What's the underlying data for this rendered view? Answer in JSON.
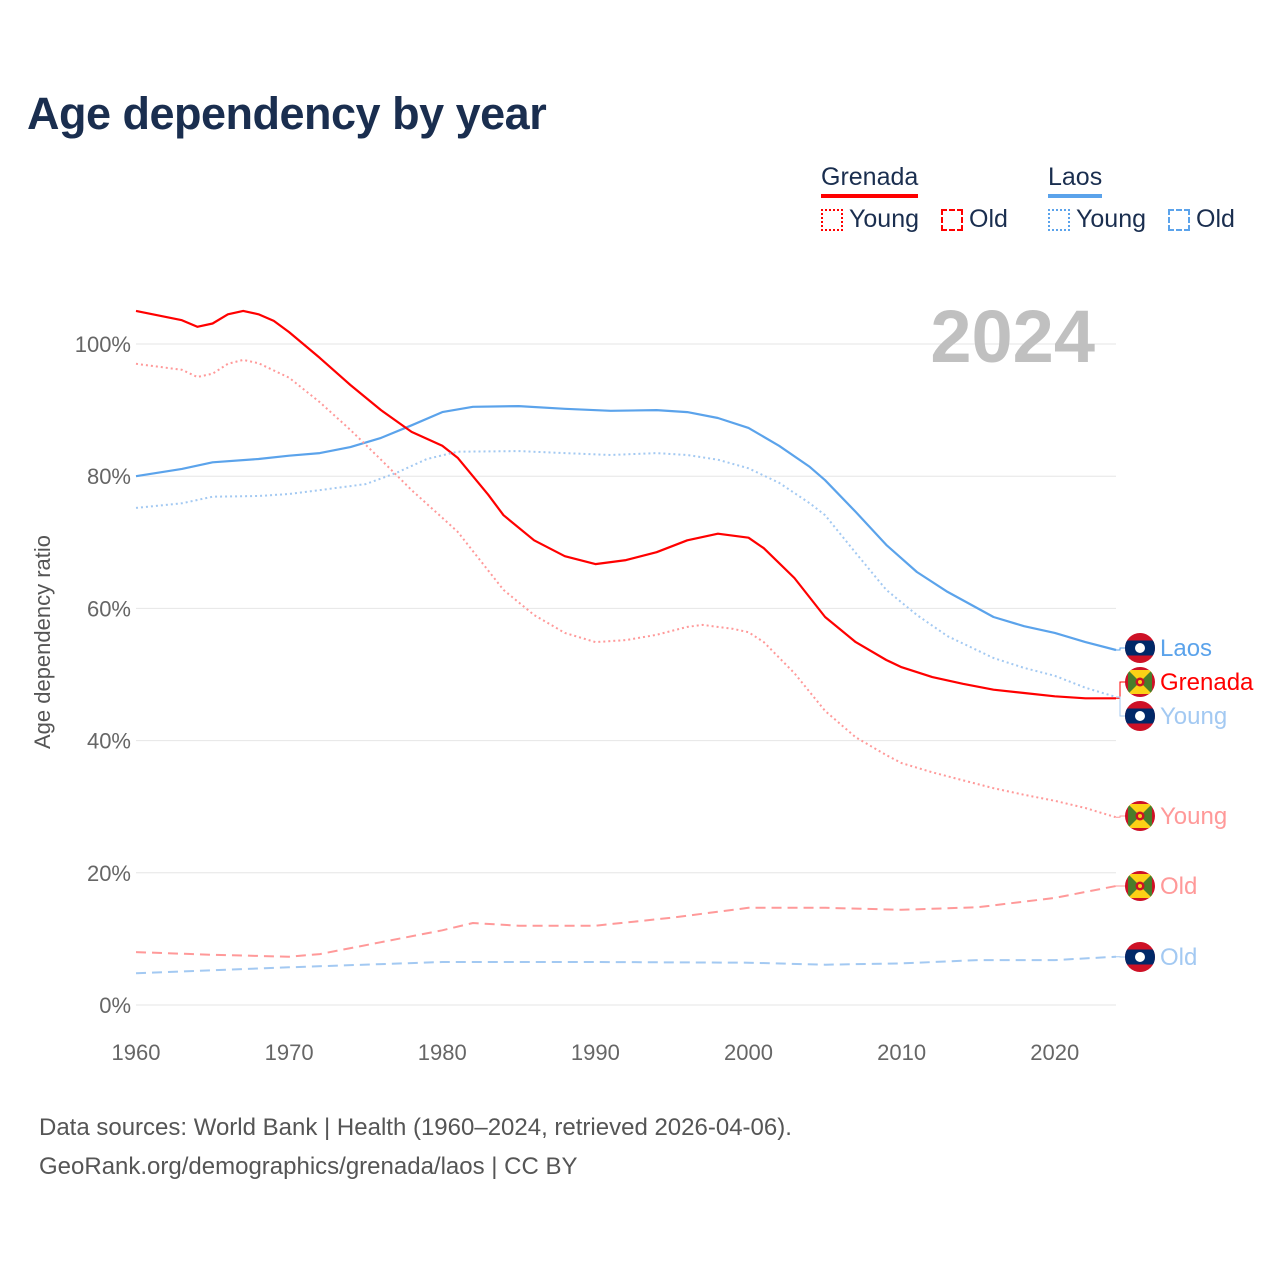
{
  "title": "Age dependency by year",
  "legend": {
    "countries": [
      {
        "name": "Grenada",
        "color": "#ff0000",
        "items": [
          "Young",
          "Old"
        ]
      },
      {
        "name": "Laos",
        "color": "#5ba3eb",
        "items": [
          "Young",
          "Old"
        ]
      }
    ]
  },
  "year_label": "2024",
  "footer": {
    "line1": "Data sources: World Bank | Health (1960–2024, retrieved 2026-04-06).",
    "line2": "GeoRank.org/demographics/grenada/laos | CC BY"
  },
  "chart_data": {
    "type": "line",
    "title": "Age dependency by year",
    "xlabel": "",
    "ylabel": "Age dependency ratio",
    "xlim": [
      1960,
      2024
    ],
    "ylim": [
      0,
      105
    ],
    "xticks": [
      "1960",
      "1970",
      "1980",
      "1990",
      "2000",
      "2010",
      "2020"
    ],
    "yticks": [
      "0%",
      "20%",
      "40%",
      "60%",
      "80%",
      "100%"
    ],
    "grid": true,
    "legend_position": "top-right",
    "series": [
      {
        "id": "laos-total",
        "name": "Laos",
        "end_label": "Laos",
        "country": "Laos",
        "style": "solid",
        "color": "#5ba3eb",
        "x": [
          1960,
          1963,
          1965,
          1968,
          1970,
          1972,
          1974,
          1976,
          1978,
          1980,
          1982,
          1985,
          1988,
          1991,
          1994,
          1996,
          1998,
          2000,
          2002,
          2004,
          2005,
          2007,
          2009,
          2011,
          2013,
          2016,
          2018,
          2020,
          2022,
          2024
        ],
        "y": [
          80.0,
          81.1,
          82.1,
          82.6,
          83.1,
          83.5,
          84.4,
          85.8,
          87.7,
          89.7,
          90.5,
          90.6,
          90.2,
          89.9,
          90.0,
          89.7,
          88.8,
          87.3,
          84.6,
          81.4,
          79.4,
          74.6,
          69.6,
          65.5,
          62.5,
          58.7,
          57.3,
          56.3,
          54.9,
          53.7
        ]
      },
      {
        "id": "grenada-total",
        "name": "Grenada",
        "end_label": "Grenada",
        "country": "Grenada",
        "style": "solid",
        "color": "#ff0000",
        "x": [
          1960,
          1963,
          1964,
          1965,
          1966,
          1967,
          1968,
          1969,
          1970,
          1972,
          1974,
          1976,
          1978,
          1980,
          1981,
          1983,
          1984,
          1986,
          1988,
          1990,
          1992,
          1994,
          1996,
          1998,
          2000,
          2001,
          2003,
          2005,
          2007,
          2009,
          2010,
          2012,
          2014,
          2016,
          2018,
          2020,
          2022,
          2024
        ],
        "y": [
          105.0,
          103.6,
          102.6,
          103.1,
          104.5,
          105.0,
          104.5,
          103.5,
          101.8,
          97.9,
          93.8,
          90.0,
          86.7,
          84.6,
          82.8,
          77.2,
          74.1,
          70.3,
          67.9,
          66.7,
          67.3,
          68.5,
          70.3,
          71.3,
          70.7,
          69.1,
          64.6,
          58.7,
          54.9,
          52.2,
          51.1,
          49.6,
          48.6,
          47.7,
          47.2,
          46.7,
          46.4,
          46.4
        ]
      },
      {
        "id": "laos-young",
        "name": "Laos Young",
        "end_label": "Young",
        "country": "Laos",
        "style": "dotted",
        "color": "#a3c9f2",
        "x": [
          1960,
          1963,
          1965,
          1968,
          1970,
          1972,
          1975,
          1977,
          1979,
          1981,
          1985,
          1988,
          1991,
          1994,
          1996,
          1998,
          2000,
          2002,
          2004,
          2005,
          2007,
          2009,
          2011,
          2013,
          2016,
          2018,
          2020,
          2022,
          2024
        ],
        "y": [
          75.2,
          75.9,
          76.9,
          77.0,
          77.3,
          77.9,
          78.8,
          80.5,
          82.6,
          83.7,
          83.8,
          83.5,
          83.2,
          83.5,
          83.2,
          82.5,
          81.2,
          79.0,
          75.9,
          74.1,
          68.4,
          62.8,
          59.0,
          55.8,
          52.5,
          51.0,
          49.8,
          48.0,
          46.6
        ]
      },
      {
        "id": "grenada-young",
        "name": "Grenada Young",
        "end_label": "Young",
        "country": "Grenada",
        "style": "dotted",
        "color": "#ff9999",
        "x": [
          1960,
          1963,
          1964,
          1965,
          1966,
          1967,
          1968,
          1970,
          1972,
          1974,
          1976,
          1978,
          1980,
          1981,
          1984,
          1986,
          1988,
          1990,
          1992,
          1994,
          1996,
          1997,
          1999,
          2000,
          2001,
          2003,
          2005,
          2007,
          2009,
          2010,
          2012,
          2014,
          2016,
          2018,
          2020,
          2022,
          2024
        ],
        "y": [
          97.0,
          96.1,
          95.0,
          95.5,
          97.0,
          97.6,
          97.1,
          94.9,
          91.2,
          87.0,
          82.5,
          77.9,
          73.7,
          71.6,
          62.8,
          59.0,
          56.3,
          54.9,
          55.2,
          56.0,
          57.2,
          57.5,
          56.9,
          56.4,
          54.9,
          50.2,
          44.5,
          40.5,
          37.8,
          36.6,
          35.2,
          34.0,
          32.8,
          31.8,
          30.9,
          29.8,
          28.4
        ]
      },
      {
        "id": "grenada-old",
        "name": "Grenada Old",
        "end_label": "Old",
        "country": "Grenada",
        "style": "dashed",
        "color": "#ff9999",
        "x": [
          1960,
          1965,
          1970,
          1972,
          1976,
          1980,
          1982,
          1985,
          1990,
          1995,
          2000,
          2005,
          2010,
          2015,
          2020,
          2024
        ],
        "y": [
          8.0,
          7.6,
          7.3,
          7.7,
          9.5,
          11.3,
          12.4,
          12.0,
          12.0,
          13.2,
          14.7,
          14.7,
          14.4,
          14.8,
          16.2,
          18.0
        ]
      },
      {
        "id": "laos-old",
        "name": "Laos Old",
        "end_label": "Old",
        "country": "Laos",
        "style": "dashed",
        "color": "#a3c9f2",
        "x": [
          1960,
          1970,
          1980,
          1990,
          2000,
          2005,
          2010,
          2015,
          2020,
          2024
        ],
        "y": [
          4.8,
          5.7,
          6.5,
          6.5,
          6.4,
          6.1,
          6.3,
          6.8,
          6.8,
          7.3
        ]
      }
    ]
  }
}
